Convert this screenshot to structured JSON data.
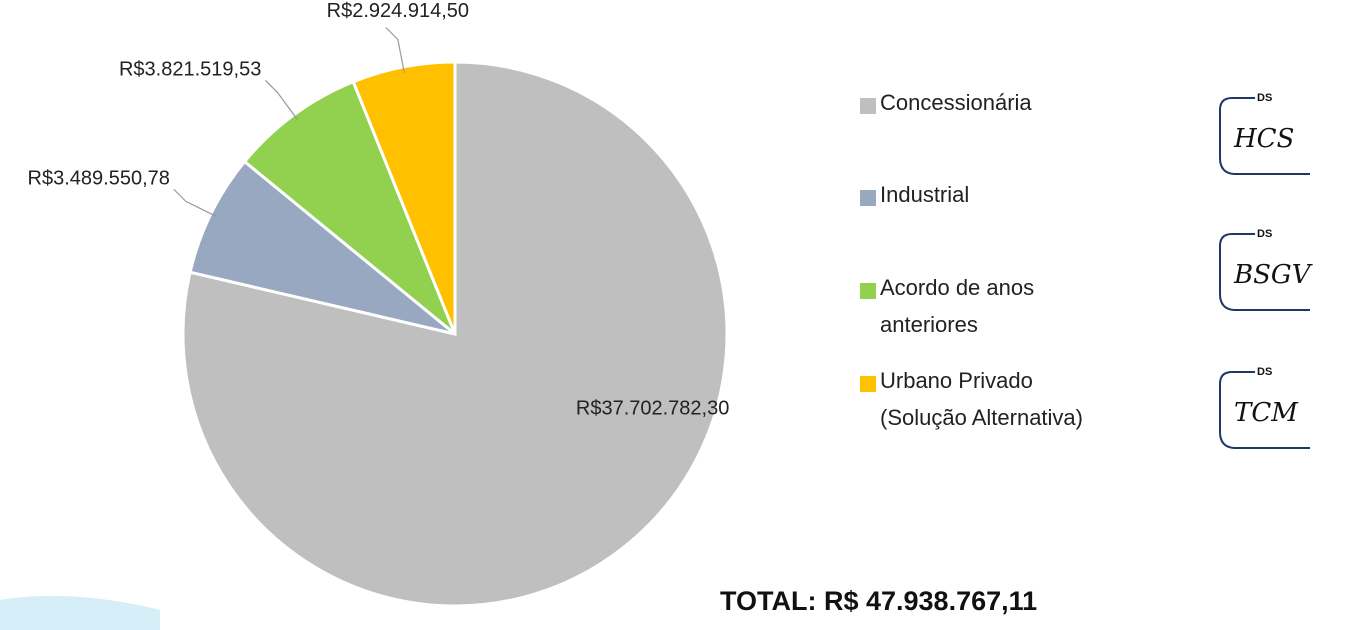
{
  "chart_data": {
    "type": "pie",
    "categories": [
      "Concessionária",
      "Industrial",
      "Acordo de anos anteriores",
      "Urbano Privado (Solução Alternativa)"
    ],
    "values": [
      37702782.3,
      3489550.78,
      3821519.53,
      2924914.5
    ],
    "value_labels": [
      "R$37.702.782,30",
      "R$3.489.550,78",
      "R$3.821.519,53",
      "R$2.924.914,50"
    ],
    "colors": [
      "#bfbfbf",
      "#97a8c0",
      "#92d050",
      "#ffc000"
    ],
    "total": "TOTAL: R$ 47.938.767,11"
  },
  "signatures": [
    {
      "badge": "DS",
      "initials": "HCS"
    },
    {
      "badge": "DS",
      "initials": "BSGV"
    },
    {
      "badge": "DS",
      "initials": "TCM"
    }
  ]
}
